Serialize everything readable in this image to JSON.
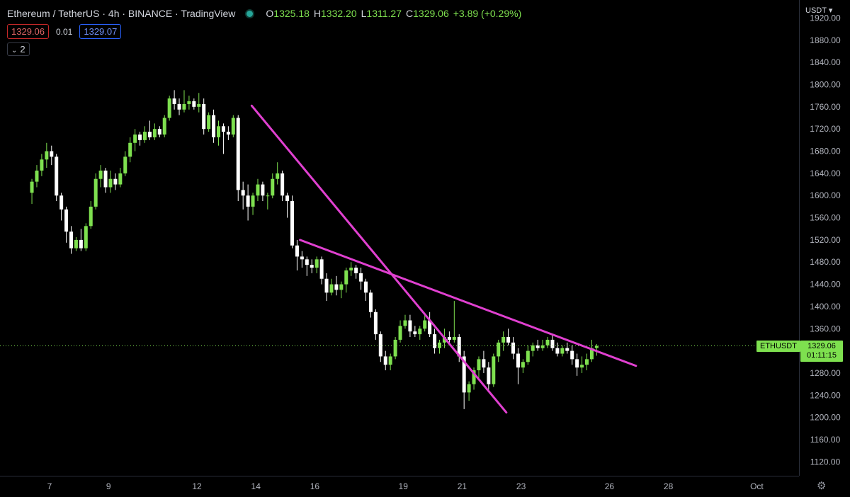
{
  "header": {
    "title": "Ethereum / TetherUS · 4h · BINANCE · TradingView",
    "ohlc": {
      "o_label": "O",
      "o": "1325.18",
      "h_label": "H",
      "h": "1332.20",
      "l_label": "L",
      "l": "1311.27",
      "c_label": "C",
      "c": "1329.06",
      "change": "+3.89 (+0.29%)"
    },
    "bid": "1329.06",
    "spread": "0.01",
    "ask": "1329.07",
    "indicator_count": "2",
    "currency": "USDT"
  },
  "colors": {
    "up": "#7ee04f",
    "down": "#ffffff",
    "trendline": "#e040d0",
    "background": "#000000",
    "grid": "#111111",
    "axis_text": "#b2b5be"
  },
  "icons": {
    "settings": "gear-icon",
    "indicator_toggle": "chevron-down-icon"
  },
  "last_price": {
    "symbol": "ETHUSDT",
    "price": "1329.06",
    "countdown": "01:11:15"
  },
  "chart_data": {
    "type": "candlestick",
    "title": "Ethereum / TetherUS",
    "interval": "4h",
    "ylim": [
      1095,
      1925
    ],
    "y_ticks": [
      1120,
      1160,
      1200,
      1240,
      1280,
      1320,
      1360,
      1400,
      1440,
      1480,
      1520,
      1560,
      1600,
      1640,
      1680,
      1720,
      1760,
      1800,
      1840,
      1880,
      1920
    ],
    "x_ticks": [
      {
        "label": "7",
        "day": 7
      },
      {
        "label": "9",
        "day": 9
      },
      {
        "label": "12",
        "day": 12
      },
      {
        "label": "14",
        "day": 14
      },
      {
        "label": "16",
        "day": 16
      },
      {
        "label": "19",
        "day": 19
      },
      {
        "label": "21",
        "day": 21
      },
      {
        "label": "23",
        "day": 23
      },
      {
        "label": "26",
        "day": 26
      },
      {
        "label": "28",
        "day": 28
      },
      {
        "label": "Oct",
        "day": 31
      }
    ],
    "grid": false,
    "candles_per_day": 6,
    "start_day": 6.4,
    "candles": [
      [
        1605,
        1630,
        1585,
        1625
      ],
      [
        1625,
        1655,
        1615,
        1645
      ],
      [
        1645,
        1675,
        1635,
        1665
      ],
      [
        1665,
        1695,
        1650,
        1680
      ],
      [
        1680,
        1690,
        1655,
        1670
      ],
      [
        1670,
        1675,
        1590,
        1600
      ],
      [
        1600,
        1605,
        1555,
        1575
      ],
      [
        1575,
        1580,
        1515,
        1535
      ],
      [
        1535,
        1545,
        1495,
        1505
      ],
      [
        1505,
        1525,
        1500,
        1520
      ],
      [
        1520,
        1540,
        1500,
        1505
      ],
      [
        1505,
        1550,
        1500,
        1545
      ],
      [
        1545,
        1590,
        1540,
        1580
      ],
      [
        1580,
        1640,
        1575,
        1630
      ],
      [
        1630,
        1655,
        1615,
        1645
      ],
      [
        1645,
        1650,
        1605,
        1615
      ],
      [
        1615,
        1645,
        1605,
        1630
      ],
      [
        1630,
        1640,
        1610,
        1620
      ],
      [
        1620,
        1650,
        1615,
        1640
      ],
      [
        1640,
        1680,
        1635,
        1670
      ],
      [
        1670,
        1705,
        1660,
        1695
      ],
      [
        1695,
        1720,
        1680,
        1710
      ],
      [
        1710,
        1715,
        1690,
        1700
      ],
      [
        1700,
        1725,
        1695,
        1715
      ],
      [
        1715,
        1735,
        1700,
        1705
      ],
      [
        1705,
        1730,
        1700,
        1720
      ],
      [
        1720,
        1725,
        1705,
        1710
      ],
      [
        1710,
        1745,
        1705,
        1740
      ],
      [
        1740,
        1780,
        1735,
        1775
      ],
      [
        1775,
        1790,
        1755,
        1765
      ],
      [
        1765,
        1775,
        1745,
        1755
      ],
      [
        1755,
        1790,
        1750,
        1765
      ],
      [
        1765,
        1780,
        1755,
        1770
      ],
      [
        1770,
        1775,
        1755,
        1760
      ],
      [
        1760,
        1785,
        1750,
        1765
      ],
      [
        1765,
        1775,
        1710,
        1720
      ],
      [
        1720,
        1750,
        1715,
        1745
      ],
      [
        1745,
        1755,
        1695,
        1705
      ],
      [
        1705,
        1735,
        1690,
        1725
      ],
      [
        1725,
        1730,
        1675,
        1715
      ],
      [
        1715,
        1725,
        1700,
        1710
      ],
      [
        1710,
        1745,
        1705,
        1740
      ],
      [
        1740,
        1745,
        1590,
        1610
      ],
      [
        1610,
        1625,
        1575,
        1600
      ],
      [
        1600,
        1620,
        1555,
        1580
      ],
      [
        1580,
        1605,
        1565,
        1600
      ],
      [
        1600,
        1630,
        1590,
        1620
      ],
      [
        1620,
        1625,
        1590,
        1600
      ],
      [
        1600,
        1605,
        1575,
        1600
      ],
      [
        1600,
        1640,
        1595,
        1630
      ],
      [
        1630,
        1660,
        1620,
        1640
      ],
      [
        1640,
        1645,
        1590,
        1600
      ],
      [
        1600,
        1605,
        1560,
        1590
      ],
      [
        1590,
        1600,
        1505,
        1510
      ],
      [
        1510,
        1520,
        1465,
        1490
      ],
      [
        1490,
        1500,
        1470,
        1485
      ],
      [
        1485,
        1490,
        1455,
        1475
      ],
      [
        1475,
        1485,
        1460,
        1470
      ],
      [
        1470,
        1490,
        1460,
        1485
      ],
      [
        1485,
        1490,
        1440,
        1450
      ],
      [
        1450,
        1460,
        1410,
        1425
      ],
      [
        1425,
        1450,
        1420,
        1440
      ],
      [
        1440,
        1455,
        1420,
        1430
      ],
      [
        1430,
        1445,
        1415,
        1440
      ],
      [
        1440,
        1470,
        1425,
        1465
      ],
      [
        1465,
        1480,
        1455,
        1470
      ],
      [
        1470,
        1475,
        1450,
        1460
      ],
      [
        1460,
        1470,
        1430,
        1445
      ],
      [
        1445,
        1450,
        1410,
        1425
      ],
      [
        1425,
        1430,
        1380,
        1390
      ],
      [
        1390,
        1395,
        1340,
        1350
      ],
      [
        1350,
        1355,
        1300,
        1310
      ],
      [
        1310,
        1320,
        1285,
        1295
      ],
      [
        1295,
        1315,
        1285,
        1310
      ],
      [
        1310,
        1345,
        1305,
        1340
      ],
      [
        1340,
        1375,
        1335,
        1365
      ],
      [
        1365,
        1385,
        1360,
        1375
      ],
      [
        1375,
        1385,
        1345,
        1355
      ],
      [
        1355,
        1365,
        1345,
        1350
      ],
      [
        1350,
        1365,
        1340,
        1360
      ],
      [
        1360,
        1385,
        1355,
        1375
      ],
      [
        1375,
        1390,
        1345,
        1350
      ],
      [
        1350,
        1360,
        1315,
        1325
      ],
      [
        1325,
        1340,
        1315,
        1335
      ],
      [
        1335,
        1360,
        1325,
        1345
      ],
      [
        1345,
        1355,
        1330,
        1340
      ],
      [
        1340,
        1410,
        1335,
        1345
      ],
      [
        1345,
        1350,
        1300,
        1310
      ],
      [
        1310,
        1320,
        1215,
        1245
      ],
      [
        1245,
        1265,
        1230,
        1260
      ],
      [
        1260,
        1290,
        1250,
        1285
      ],
      [
        1285,
        1310,
        1270,
        1305
      ],
      [
        1305,
        1320,
        1280,
        1290
      ],
      [
        1290,
        1300,
        1250,
        1260
      ],
      [
        1260,
        1315,
        1255,
        1310
      ],
      [
        1310,
        1340,
        1300,
        1335
      ],
      [
        1335,
        1355,
        1320,
        1345
      ],
      [
        1345,
        1360,
        1330,
        1335
      ],
      [
        1335,
        1345,
        1305,
        1315
      ],
      [
        1315,
        1325,
        1260,
        1290
      ],
      [
        1290,
        1305,
        1280,
        1300
      ],
      [
        1300,
        1330,
        1295,
        1320
      ],
      [
        1320,
        1335,
        1310,
        1330
      ],
      [
        1330,
        1340,
        1320,
        1325
      ],
      [
        1325,
        1340,
        1320,
        1330
      ],
      [
        1330,
        1345,
        1325,
        1340
      ],
      [
        1340,
        1350,
        1320,
        1325
      ],
      [
        1325,
        1335,
        1310,
        1315
      ],
      [
        1315,
        1330,
        1310,
        1325
      ],
      [
        1325,
        1335,
        1315,
        1320
      ],
      [
        1320,
        1330,
        1295,
        1305
      ],
      [
        1305,
        1315,
        1275,
        1290
      ],
      [
        1290,
        1310,
        1280,
        1295
      ],
      [
        1295,
        1315,
        1285,
        1305
      ],
      [
        1305,
        1340,
        1300,
        1325
      ],
      [
        1325.18,
        1332.2,
        1311.27,
        1329.06
      ]
    ],
    "trendlines": [
      {
        "x1_day": 13.86,
        "y1": 1762,
        "x2_day": 22.5,
        "y2": 1209
      },
      {
        "x1_day": 15.5,
        "y1": 1520,
        "x2_day": 26.9,
        "y2": 1293
      }
    ],
    "last_price_line": 1329.06
  }
}
